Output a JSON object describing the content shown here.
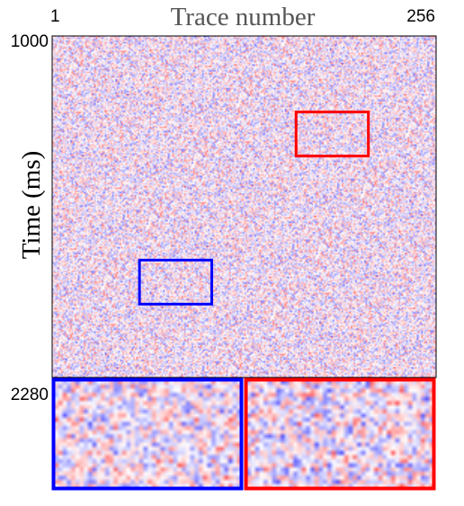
{
  "chart_data": {
    "type": "heatmap",
    "title": "Trace number",
    "xlabel": "Trace number",
    "ylabel": "Time (ms)",
    "x_ticks": [
      "1",
      "256"
    ],
    "y_ticks": [
      "1000",
      "2280"
    ],
    "xlim": [
      1,
      256
    ],
    "ylim": [
      1000,
      2280
    ],
    "colormap": [
      "#2a2aff",
      "#ffffff",
      "#ff2a2a"
    ],
    "highlight_boxes": [
      {
        "name": "red-box",
        "color": "#ff0000",
        "trace_range": [
          163,
          211
        ],
        "time_range": [
          1285,
          1450
        ]
      },
      {
        "name": "blue-box",
        "color": "#0000ff",
        "trace_range": [
          59,
          107
        ],
        "time_range": [
          1840,
          2005
        ]
      }
    ],
    "zoom_panels": [
      {
        "name": "blue-zoom",
        "color": "#0000ff",
        "source": "blue-box"
      },
      {
        "name": "red-zoom",
        "color": "#ff0000",
        "source": "red-box"
      }
    ]
  }
}
